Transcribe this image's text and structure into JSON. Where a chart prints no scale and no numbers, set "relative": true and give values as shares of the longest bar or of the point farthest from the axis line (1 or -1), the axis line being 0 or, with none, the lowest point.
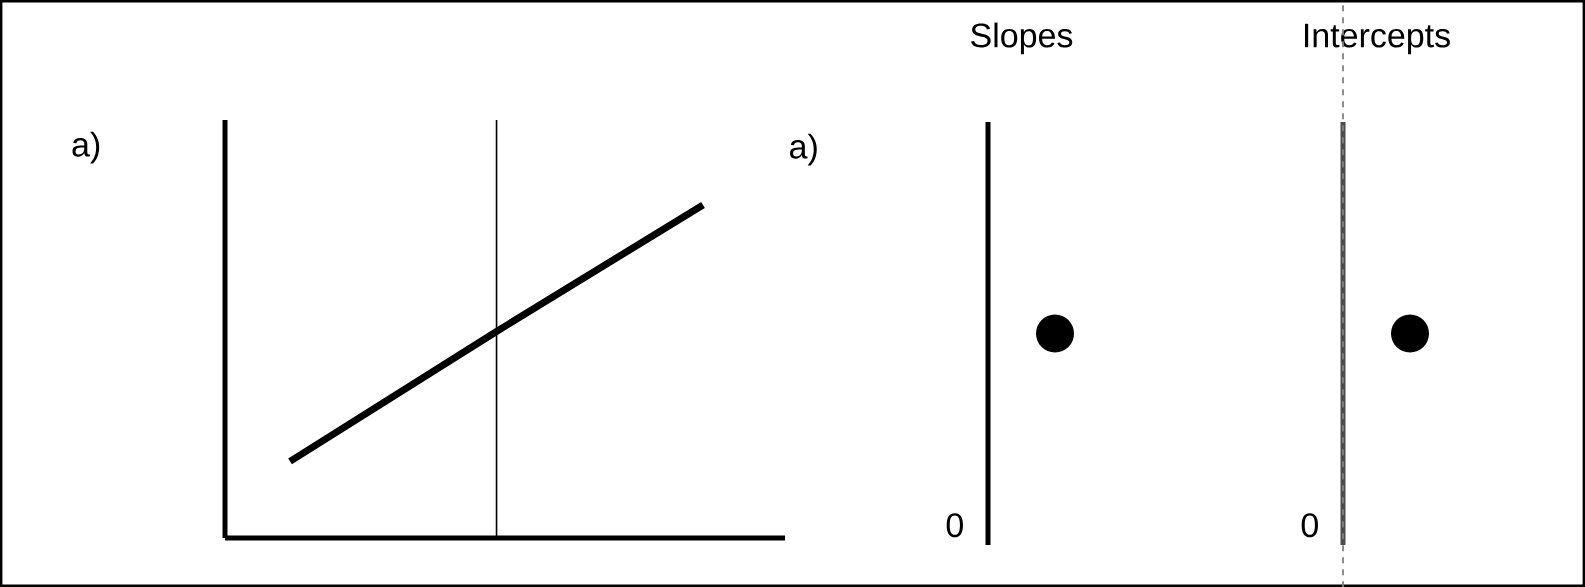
{
  "chart_data": [
    {
      "type": "line",
      "relative": true,
      "categories": [
        null,
        null,
        null
      ],
      "values": [
        0.23,
        0.62,
        1
      ],
      "color": "#000000",
      "annotations": [
        "a)"
      ]
    },
    {
      "type": "other",
      "title": "Slopes",
      "annotations": [
        "a)",
        "0"
      ]
    },
    {
      "type": "other",
      "title": "Intercepts",
      "annotations": [
        "0"
      ]
    }
  ]
}
